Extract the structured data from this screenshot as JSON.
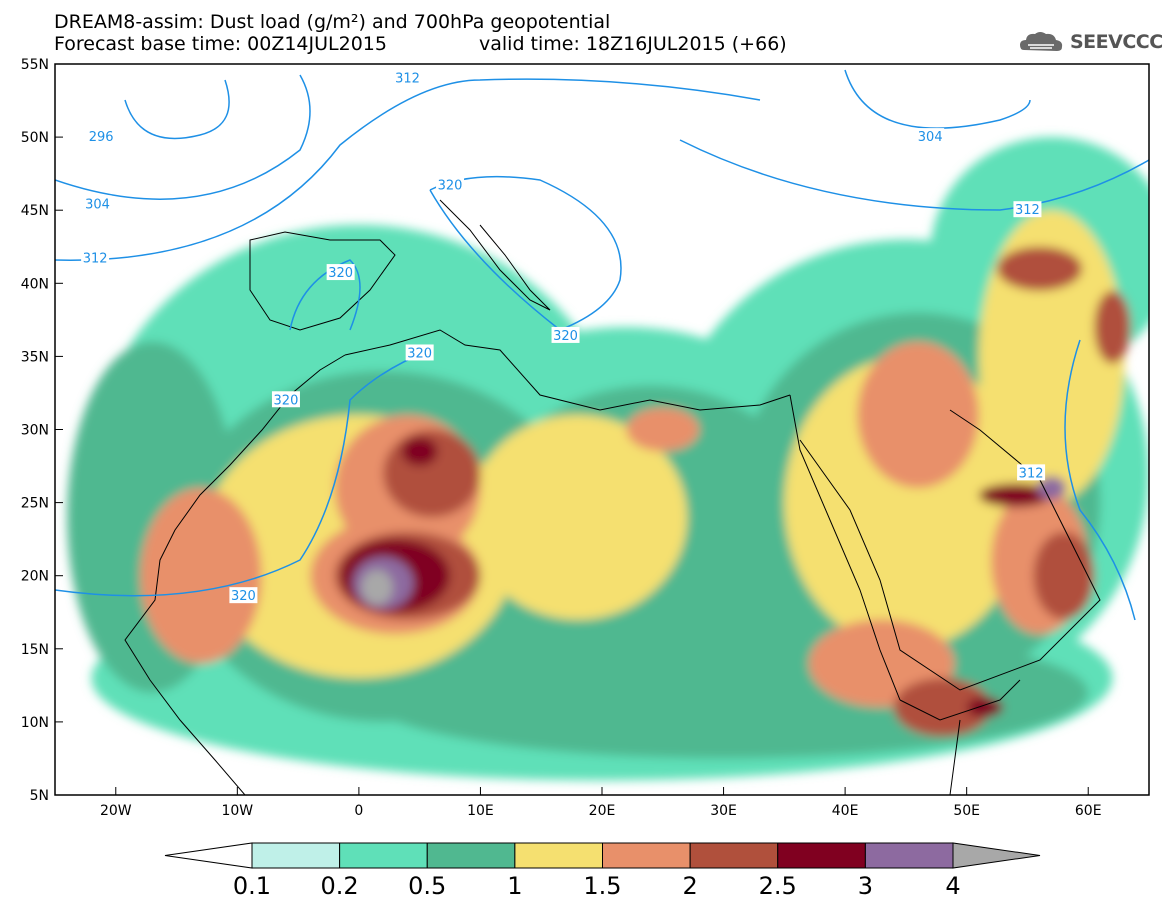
{
  "title": {
    "line1": "DREAM8-assim: Dust load (g/m²) and 700hPa geopotential",
    "line2": "Forecast base time: 00Z14JUL2015",
    "valid": "valid time: 18Z16JUL2015 (+66)"
  },
  "logo": {
    "text": "SEEVCCC",
    "icon": "cloud-icon"
  },
  "map": {
    "lon_range": [
      -25,
      65
    ],
    "lat_range": [
      5,
      55
    ],
    "lat_ticks": [
      {
        "value": 55,
        "label": "55N"
      },
      {
        "value": 50,
        "label": "50N"
      },
      {
        "value": 45,
        "label": "45N"
      },
      {
        "value": 40,
        "label": "40N"
      },
      {
        "value": 35,
        "label": "35N"
      },
      {
        "value": 30,
        "label": "30N"
      },
      {
        "value": 25,
        "label": "25N"
      },
      {
        "value": 20,
        "label": "20N"
      },
      {
        "value": 15,
        "label": "15N"
      },
      {
        "value": 10,
        "label": "10N"
      },
      {
        "value": 5,
        "label": "5N"
      }
    ],
    "lon_ticks": [
      {
        "value": -20,
        "label": "20W"
      },
      {
        "value": -10,
        "label": "10W"
      },
      {
        "value": 0,
        "label": "0"
      },
      {
        "value": 10,
        "label": "10E"
      },
      {
        "value": 20,
        "label": "20E"
      },
      {
        "value": 30,
        "label": "30E"
      },
      {
        "value": 40,
        "label": "40E"
      },
      {
        "value": 50,
        "label": "50E"
      },
      {
        "value": 60,
        "label": "60E"
      }
    ],
    "contour_color": "#1e90e6",
    "contour_labels": [
      {
        "text": "312",
        "lon": 4.0,
        "lat": 54.0
      },
      {
        "text": "296",
        "lon": -21.2,
        "lat": 50.0
      },
      {
        "text": "304",
        "lon": -21.5,
        "lat": 45.4
      },
      {
        "text": "312",
        "lon": -21.7,
        "lat": 41.7
      },
      {
        "text": "320",
        "lon": 7.5,
        "lat": 46.7
      },
      {
        "text": "320",
        "lon": -1.5,
        "lat": 40.7
      },
      {
        "text": "304",
        "lon": 47.0,
        "lat": 50.0
      },
      {
        "text": "312",
        "lon": 55.0,
        "lat": 45.0
      },
      {
        "text": "320",
        "lon": 17.0,
        "lat": 36.4
      },
      {
        "text": "320",
        "lon": 5.0,
        "lat": 35.2
      },
      {
        "text": "320",
        "lon": -6.0,
        "lat": 32.0
      },
      {
        "text": "312",
        "lon": 55.3,
        "lat": 27.0
      },
      {
        "text": "320",
        "lon": -9.5,
        "lat": 18.6
      }
    ],
    "dust_regions": [
      {
        "level": 1,
        "lon": 0,
        "lat": 27,
        "rx": 22,
        "ry": 17
      },
      {
        "level": 1,
        "lon": 22,
        "lat": 24,
        "rx": 19,
        "ry": 13
      },
      {
        "level": 1,
        "lon": 45,
        "lat": 27,
        "rx": 20,
        "ry": 16
      },
      {
        "level": 1,
        "lon": 20,
        "lat": 13,
        "rx": 42,
        "ry": 7
      },
      {
        "level": 1,
        "lon": 57,
        "lat": 42,
        "rx": 10,
        "ry": 8
      },
      {
        "level": 2,
        "lon": 2,
        "lat": 22,
        "rx": 17,
        "ry": 12
      },
      {
        "level": 2,
        "lon": 24,
        "lat": 23,
        "rx": 14,
        "ry": 10
      },
      {
        "level": 2,
        "lon": 46,
        "lat": 25,
        "rx": 15,
        "ry": 13
      },
      {
        "level": 2,
        "lon": 30,
        "lat": 12,
        "rx": 30,
        "ry": 4.5
      },
      {
        "level": 2,
        "lon": -17,
        "lat": 24,
        "rx": 7,
        "ry": 12
      },
      {
        "level": 3,
        "lon": 0,
        "lat": 22,
        "rx": 13,
        "ry": 9
      },
      {
        "level": 3,
        "lon": 18,
        "lat": 24,
        "rx": 9,
        "ry": 7
      },
      {
        "level": 3,
        "lon": 45,
        "lat": 25,
        "rx": 10,
        "ry": 10
      },
      {
        "level": 3,
        "lon": 57,
        "lat": 35,
        "rx": 6,
        "ry": 10
      },
      {
        "level": 4,
        "lon": -13,
        "lat": 20,
        "rx": 5,
        "ry": 6
      },
      {
        "level": 4,
        "lon": 4,
        "lat": 26,
        "rx": 6,
        "ry": 5
      },
      {
        "level": 4,
        "lon": 3,
        "lat": 20,
        "rx": 7,
        "ry": 4
      },
      {
        "level": 4,
        "lon": 46,
        "lat": 31,
        "rx": 5,
        "ry": 5
      },
      {
        "level": 4,
        "lon": 43,
        "lat": 14,
        "rx": 6,
        "ry": 3
      },
      {
        "level": 4,
        "lon": 56,
        "lat": 21,
        "rx": 4,
        "ry": 5
      },
      {
        "level": 4,
        "lon": 25,
        "lat": 30,
        "rx": 3,
        "ry": 1.5
      },
      {
        "level": 5,
        "lon": 6,
        "lat": 27,
        "rx": 4,
        "ry": 3
      },
      {
        "level": 5,
        "lon": 4,
        "lat": 20,
        "rx": 6,
        "ry": 3
      },
      {
        "level": 5,
        "lon": 48,
        "lat": 11,
        "rx": 4,
        "ry": 2
      },
      {
        "level": 5,
        "lon": 58,
        "lat": 20,
        "rx": 2.5,
        "ry": 3
      },
      {
        "level": 5,
        "lon": 56,
        "lat": 41,
        "rx": 3.5,
        "ry": 1.5
      },
      {
        "level": 5,
        "lon": 62,
        "lat": 37,
        "rx": 1.5,
        "ry": 2.5
      },
      {
        "level": 6,
        "lon": 3,
        "lat": 20,
        "rx": 4.5,
        "ry": 2.5
      },
      {
        "level": 6,
        "lon": 5,
        "lat": 28.5,
        "rx": 1.5,
        "ry": 1
      },
      {
        "level": 6,
        "lon": 54,
        "lat": 25.5,
        "rx": 3,
        "ry": 0.8
      },
      {
        "level": 6,
        "lon": 51.5,
        "lat": 11,
        "rx": 1.5,
        "ry": 0.7
      },
      {
        "level": 7,
        "lon": 2,
        "lat": 19.5,
        "rx": 2.5,
        "ry": 1.8
      },
      {
        "level": 7,
        "lon": 57,
        "lat": 26,
        "rx": 1.2,
        "ry": 0.8
      },
      {
        "level": 8,
        "lon": 1.5,
        "lat": 19.2,
        "rx": 1.3,
        "ry": 1.2
      }
    ]
  },
  "colorbar": {
    "levels": [
      "0.1",
      "0.2",
      "0.5",
      "1",
      "1.5",
      "2",
      "2.5",
      "3",
      "4"
    ],
    "colors": [
      "#ffffff",
      "#bff0e8",
      "#5fe0b8",
      "#50b890",
      "#f5e070",
      "#e8906a",
      "#b0503c",
      "#800020",
      "#8d6aa0",
      "#a8a8a8"
    ]
  }
}
